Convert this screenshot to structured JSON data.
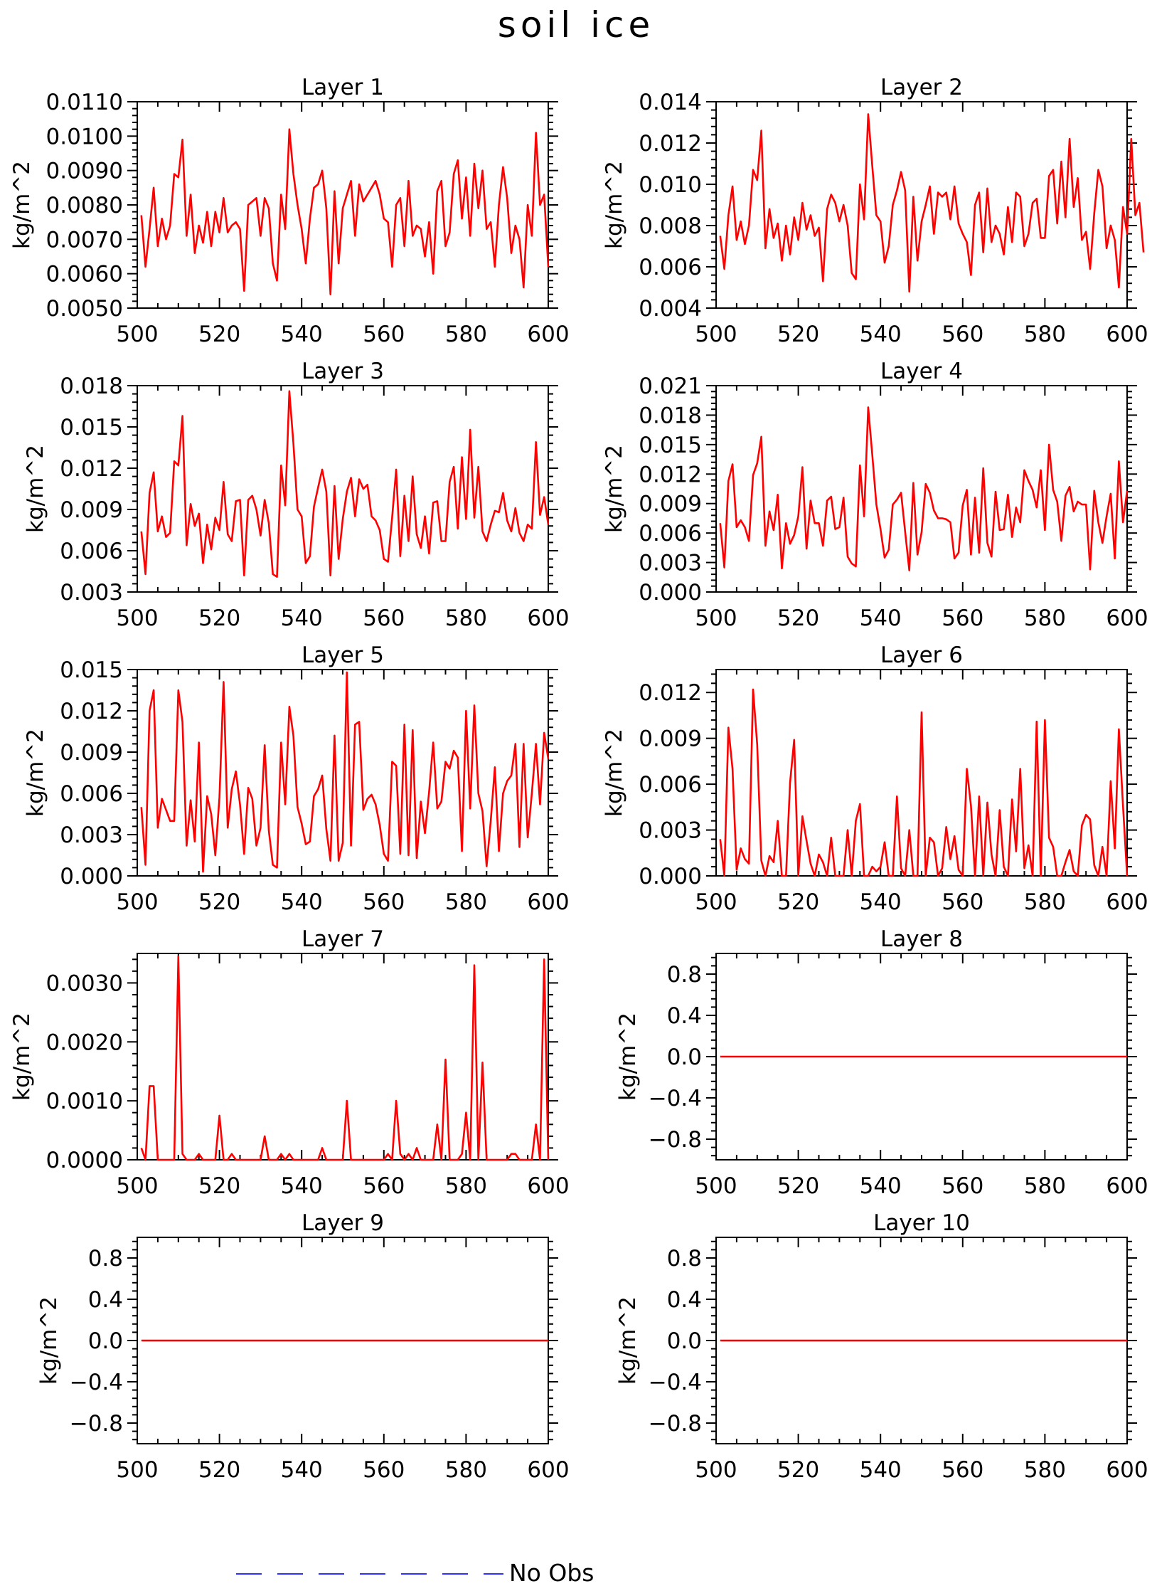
{
  "figure": {
    "title": "soil ice",
    "legend": {
      "label": "No Obs",
      "color": "#3030ff",
      "style": "dashed",
      "placement": "bottom-center"
    }
  },
  "colors": {
    "series": "#ff0000",
    "axis": "#000000",
    "background": "#ffffff"
  },
  "chart_data": [
    {
      "type": "line",
      "title": "Layer 1",
      "ylabel": "kg/m^2",
      "xlim": [
        500,
        600
      ],
      "ylim": [
        0.005,
        0.011
      ],
      "xticks": [
        500,
        520,
        540,
        560,
        580,
        600
      ],
      "yticks": [
        "0.0050",
        "0.0060",
        "0.0070",
        "0.0080",
        "0.0090",
        "0.0100",
        "0.0110"
      ],
      "x_start": 501,
      "values": [
        0.0077,
        0.0062,
        0.0073,
        0.0085,
        0.0068,
        0.0076,
        0.007,
        0.0074,
        0.0089,
        0.0088,
        0.0099,
        0.0071,
        0.0083,
        0.0066,
        0.0074,
        0.0069,
        0.0078,
        0.0068,
        0.0078,
        0.0072,
        0.0082,
        0.0072,
        0.0074,
        0.0075,
        0.0073,
        0.0055,
        0.008,
        0.0081,
        0.0082,
        0.0071,
        0.0082,
        0.0079,
        0.0063,
        0.0058,
        0.0083,
        0.0073,
        0.0102,
        0.0089,
        0.008,
        0.0073,
        0.0063,
        0.0076,
        0.0085,
        0.0086,
        0.009,
        0.0079,
        0.0054,
        0.0084,
        0.0063,
        0.0079,
        0.0083,
        0.0087,
        0.0071,
        0.0086,
        0.0081,
        0.0083,
        0.0085,
        0.0087,
        0.0083,
        0.0076,
        0.0075,
        0.0062,
        0.008,
        0.0082,
        0.0068,
        0.0087,
        0.0071,
        0.0074,
        0.0073,
        0.0065,
        0.0075,
        0.006,
        0.0084,
        0.0087,
        0.0068,
        0.0072,
        0.0089,
        0.0093,
        0.0076,
        0.0088,
        0.0071,
        0.0092,
        0.0079,
        0.009,
        0.0073,
        0.0075,
        0.0062,
        0.008,
        0.0091,
        0.0082,
        0.0066,
        0.0074,
        0.007,
        0.0056,
        0.008,
        0.0071,
        0.0101,
        0.008,
        0.0083,
        0.0062
      ]
    },
    {
      "type": "line",
      "title": "Layer 2",
      "ylabel": "kg/m^2",
      "xlim": [
        500,
        600
      ],
      "ylim": [
        0.004,
        0.014
      ],
      "xticks": [
        500,
        520,
        540,
        560,
        580,
        600
      ],
      "yticks": [
        "0.004",
        "0.006",
        "0.008",
        "0.010",
        "0.012",
        "0.014"
      ],
      "x_start": 501,
      "values": [
        0.0075,
        0.0059,
        0.0085,
        0.0099,
        0.0073,
        0.0082,
        0.0071,
        0.008,
        0.0107,
        0.0102,
        0.0126,
        0.0069,
        0.0088,
        0.0074,
        0.0081,
        0.0063,
        0.008,
        0.0066,
        0.0084,
        0.0073,
        0.0091,
        0.0078,
        0.0085,
        0.0075,
        0.0079,
        0.0053,
        0.0088,
        0.0095,
        0.0091,
        0.0082,
        0.009,
        0.008,
        0.0057,
        0.0054,
        0.01,
        0.0083,
        0.0134,
        0.0109,
        0.0085,
        0.0082,
        0.0062,
        0.007,
        0.009,
        0.0097,
        0.0106,
        0.0097,
        0.0048,
        0.0094,
        0.0063,
        0.0082,
        0.009,
        0.0099,
        0.0076,
        0.0096,
        0.0094,
        0.0096,
        0.0083,
        0.0099,
        0.0081,
        0.0076,
        0.0072,
        0.0056,
        0.009,
        0.0096,
        0.0067,
        0.0098,
        0.0072,
        0.008,
        0.0076,
        0.0066,
        0.0089,
        0.0072,
        0.0096,
        0.0094,
        0.007,
        0.0076,
        0.0091,
        0.0093,
        0.0074,
        0.0074,
        0.0104,
        0.0107,
        0.0081,
        0.0111,
        0.0084,
        0.0122,
        0.0089,
        0.0103,
        0.0073,
        0.0077,
        0.0059,
        0.0086,
        0.0107,
        0.0099,
        0.0069,
        0.008,
        0.0073,
        0.005,
        0.0089,
        0.0076,
        0.0122,
        0.0085,
        0.0091,
        0.0067
      ]
    },
    {
      "type": "line",
      "title": "Layer 3",
      "ylabel": "kg/m^2",
      "xlim": [
        500,
        600
      ],
      "ylim": [
        0.003,
        0.018
      ],
      "xticks": [
        500,
        520,
        540,
        560,
        580,
        600
      ],
      "yticks": [
        "0.003",
        "0.006",
        "0.009",
        "0.012",
        "0.015",
        "0.018"
      ],
      "x_start": 501,
      "values": [
        0.0074,
        0.0043,
        0.0102,
        0.0117,
        0.0074,
        0.0085,
        0.007,
        0.0073,
        0.0125,
        0.0122,
        0.0158,
        0.0064,
        0.0094,
        0.0078,
        0.0087,
        0.0051,
        0.0079,
        0.0061,
        0.0084,
        0.0075,
        0.011,
        0.0072,
        0.0067,
        0.0096,
        0.0097,
        0.0042,
        0.0097,
        0.01,
        0.009,
        0.0071,
        0.0097,
        0.008,
        0.0043,
        0.0041,
        0.0122,
        0.0093,
        0.0176,
        0.0138,
        0.009,
        0.0085,
        0.0051,
        0.0056,
        0.0092,
        0.0106,
        0.0119,
        0.0103,
        0.0042,
        0.0107,
        0.0054,
        0.0083,
        0.0103,
        0.0113,
        0.0085,
        0.0112,
        0.0105,
        0.0108,
        0.0085,
        0.0082,
        0.0075,
        0.0054,
        0.0052,
        0.0084,
        0.0119,
        0.0056,
        0.01,
        0.0067,
        0.0114,
        0.0072,
        0.0062,
        0.0085,
        0.0058,
        0.0095,
        0.0096,
        0.0067,
        0.0067,
        0.011,
        0.0121,
        0.0076,
        0.0128,
        0.0083,
        0.0148,
        0.0084,
        0.0121,
        0.0074,
        0.0067,
        0.0079,
        0.0089,
        0.0088,
        0.0102,
        0.0082,
        0.0074,
        0.0091,
        0.0073,
        0.0067,
        0.0079,
        0.0076,
        0.0139,
        0.0086,
        0.0099,
        0.0079
      ]
    },
    {
      "type": "line",
      "title": "Layer 4",
      "ylabel": "kg/m^2",
      "xlim": [
        500,
        600
      ],
      "ylim": [
        0.0,
        0.021
      ],
      "xticks": [
        500,
        520,
        540,
        560,
        580,
        600
      ],
      "yticks": [
        "0.000",
        "0.003",
        "0.006",
        "0.009",
        "0.012",
        "0.015",
        "0.018",
        "0.021"
      ],
      "x_start": 501,
      "values": [
        0.007,
        0.0025,
        0.0113,
        0.013,
        0.0066,
        0.0073,
        0.0066,
        0.0052,
        0.0119,
        0.0131,
        0.0158,
        0.0047,
        0.0082,
        0.0063,
        0.0099,
        0.0024,
        0.007,
        0.0049,
        0.0058,
        0.0077,
        0.0127,
        0.0044,
        0.0093,
        0.007,
        0.007,
        0.0047,
        0.0093,
        0.0097,
        0.0064,
        0.0066,
        0.0096,
        0.0036,
        0.0029,
        0.0026,
        0.0129,
        0.0077,
        0.0188,
        0.014,
        0.0089,
        0.0064,
        0.0035,
        0.0043,
        0.0089,
        0.0094,
        0.0101,
        0.0061,
        0.0022,
        0.0111,
        0.0038,
        0.0061,
        0.011,
        0.0101,
        0.0083,
        0.0075,
        0.0075,
        0.0074,
        0.0071,
        0.0034,
        0.004,
        0.0088,
        0.0104,
        0.0038,
        0.0096,
        0.004,
        0.0126,
        0.005,
        0.0036,
        0.0102,
        0.0063,
        0.0064,
        0.0099,
        0.0056,
        0.0086,
        0.0071,
        0.0124,
        0.0113,
        0.0104,
        0.0086,
        0.0124,
        0.0063,
        0.015,
        0.0104,
        0.0092,
        0.0052,
        0.0098,
        0.0107,
        0.0082,
        0.0092,
        0.0089,
        0.0089,
        0.0023,
        0.0103,
        0.0071,
        0.005,
        0.0077,
        0.01,
        0.0034,
        0.0133,
        0.0071,
        0.0103
      ]
    },
    {
      "type": "line",
      "title": "Layer 5",
      "ylabel": "kg/m^2",
      "xlim": [
        500,
        600
      ],
      "ylim": [
        0.0,
        0.015
      ],
      "xticks": [
        500,
        520,
        540,
        560,
        580,
        600
      ],
      "yticks": [
        "0.000",
        "0.003",
        "0.006",
        "0.009",
        "0.012",
        "0.015"
      ],
      "x_start": 501,
      "values": [
        0.005,
        0.0008,
        0.012,
        0.0135,
        0.0035,
        0.0056,
        0.0048,
        0.004,
        0.004,
        0.0135,
        0.0112,
        0.0022,
        0.0055,
        0.0025,
        0.0097,
        0.0003,
        0.0058,
        0.0045,
        0.0015,
        0.0057,
        0.0141,
        0.0035,
        0.0063,
        0.0076,
        0.0052,
        0.0016,
        0.0064,
        0.0056,
        0.0022,
        0.0035,
        0.0095,
        0.0033,
        0.0008,
        0.0006,
        0.0097,
        0.0052,
        0.0123,
        0.0102,
        0.005,
        0.0038,
        0.0023,
        0.0025,
        0.0058,
        0.0063,
        0.0073,
        0.0034,
        0.0011,
        0.0102,
        0.0011,
        0.0024,
        0.0148,
        0.0022,
        0.011,
        0.0112,
        0.0048,
        0.0056,
        0.0059,
        0.0052,
        0.0037,
        0.0016,
        0.0011,
        0.0083,
        0.008,
        0.0016,
        0.011,
        0.0015,
        0.0106,
        0.0013,
        0.0054,
        0.0031,
        0.0061,
        0.0097,
        0.0049,
        0.0054,
        0.0083,
        0.0078,
        0.0091,
        0.0086,
        0.0018,
        0.012,
        0.0049,
        0.0124,
        0.006,
        0.0047,
        0.0007,
        0.004,
        0.0079,
        0.0018,
        0.006,
        0.0069,
        0.0073,
        0.0096,
        0.0021,
        0.0096,
        0.0028,
        0.006,
        0.0096,
        0.0052,
        0.0104,
        0.0085
      ]
    },
    {
      "type": "line",
      "title": "Layer 6",
      "ylabel": "kg/m^2",
      "xlim": [
        500,
        600
      ],
      "ylim": [
        0.0,
        0.0135
      ],
      "xticks": [
        500,
        520,
        540,
        560,
        580,
        600
      ],
      "yticks": [
        "0.000",
        "0.003",
        "0.006",
        "0.009",
        "0.012"
      ],
      "x_start": 501,
      "values": [
        0.0024,
        0.0,
        0.0097,
        0.007,
        0.0004,
        0.0018,
        0.0011,
        0.0008,
        0.0122,
        0.0086,
        0.001,
        0.0,
        0.0013,
        0.0009,
        0.0036,
        0.0,
        0.0,
        0.0061,
        0.0089,
        0.0,
        0.0039,
        0.0023,
        0.0008,
        0.0,
        0.0014,
        0.0009,
        0.0,
        0.0025,
        0.0,
        0.0,
        0.0,
        0.003,
        0.0,
        0.0036,
        0.0047,
        0.0,
        0.0,
        0.0006,
        0.0003,
        0.0006,
        0.0022,
        0.0,
        0.0,
        0.0052,
        0.0005,
        0.0,
        0.003,
        0.0,
        0.0,
        0.0107,
        0.0,
        0.0025,
        0.0022,
        0.0,
        0.0005,
        0.0032,
        0.0011,
        0.0026,
        0.0004,
        0.0,
        0.007,
        0.0046,
        0.0,
        0.0052,
        0.0,
        0.0048,
        0.0014,
        0.0,
        0.0043,
        0.0006,
        0.0,
        0.005,
        0.0016,
        0.007,
        0.0005,
        0.002,
        0.0,
        0.0101,
        0.0,
        0.0102,
        0.0025,
        0.0019,
        0.0,
        0.0,
        0.0009,
        0.0017,
        0.0003,
        0.0,
        0.0033,
        0.004,
        0.0037,
        0.0007,
        0.0,
        0.0019,
        0.0,
        0.0062,
        0.0018,
        0.0096,
        0.0046,
        0.0
      ]
    },
    {
      "type": "line",
      "title": "Layer 7",
      "ylabel": "kg/m^2",
      "xlim": [
        500,
        600
      ],
      "ylim": [
        0.0,
        0.0035
      ],
      "xticks": [
        500,
        520,
        540,
        560,
        580,
        600
      ],
      "yticks": [
        "0.0000",
        "0.0010",
        "0.0020",
        "0.0030"
      ],
      "x_start": 501,
      "values": [
        0.0002,
        0.0,
        0.00125,
        0.00125,
        0.0,
        0.0,
        0.0,
        0.0,
        0.0,
        0.00345,
        0.0001,
        0.0,
        0.0,
        0.0,
        0.0001,
        0.0,
        0.0,
        0.0,
        0.0,
        0.00075,
        0.0,
        0.0,
        0.0001,
        0.0,
        0.0,
        0.0,
        0.0,
        0.0,
        0.0,
        0.0,
        0.0004,
        0.0,
        0.0,
        0.0,
        0.0001,
        0.0,
        0.0001,
        0.0,
        0.0,
        0.0,
        0.0,
        0.0,
        0.0,
        0.0,
        0.0002,
        0.0,
        0.0,
        0.0,
        0.0,
        0.0,
        0.001,
        0.0,
        0.0,
        0.0,
        0.0,
        0.0,
        0.0,
        0.0,
        0.0,
        0.0,
        0.0001,
        0.0,
        0.001,
        0.0001,
        0.0,
        0.0001,
        0.0,
        0.0002,
        0.0,
        0.0,
        0.0,
        0.0,
        0.0006,
        0.0,
        0.0017,
        0.0,
        0.0,
        0.0,
        0.0001,
        0.0008,
        0.0,
        0.0033,
        0.0,
        0.00165,
        0.0,
        0.0,
        0.0,
        0.0,
        0.0,
        0.0,
        0.0001,
        0.0001,
        0.0,
        0.0,
        0.0,
        0.0,
        0.0006,
        0.0,
        0.0034,
        0.0
      ]
    },
    {
      "type": "line",
      "title": "Layer 8",
      "ylabel": "kg/m^2",
      "xlim": [
        500,
        600
      ],
      "ylim": [
        -1.0,
        1.0
      ],
      "xticks": [
        500,
        520,
        540,
        560,
        580,
        600
      ],
      "yticks": [
        "−0.8",
        "−0.4",
        "0.0",
        "0.4",
        "0.8"
      ],
      "x": [
        501,
        600
      ],
      "values": [
        0.0,
        0.0
      ]
    },
    {
      "type": "line",
      "title": "Layer 9",
      "ylabel": "kg/m^2",
      "xlim": [
        500,
        600
      ],
      "ylim": [
        -1.0,
        1.0
      ],
      "xticks": [
        500,
        520,
        540,
        560,
        580,
        600
      ],
      "yticks": [
        "−0.8",
        "−0.4",
        "0.0",
        "0.4",
        "0.8"
      ],
      "x": [
        501,
        600
      ],
      "values": [
        0.0,
        0.0
      ]
    },
    {
      "type": "line",
      "title": "Layer 10",
      "ylabel": "kg/m^2",
      "xlim": [
        500,
        600
      ],
      "ylim": [
        -1.0,
        1.0
      ],
      "xticks": [
        500,
        520,
        540,
        560,
        580,
        600
      ],
      "yticks": [
        "−0.8",
        "−0.4",
        "0.0",
        "0.4",
        "0.8"
      ],
      "x": [
        501,
        600
      ],
      "values": [
        0.0,
        0.0
      ]
    }
  ]
}
